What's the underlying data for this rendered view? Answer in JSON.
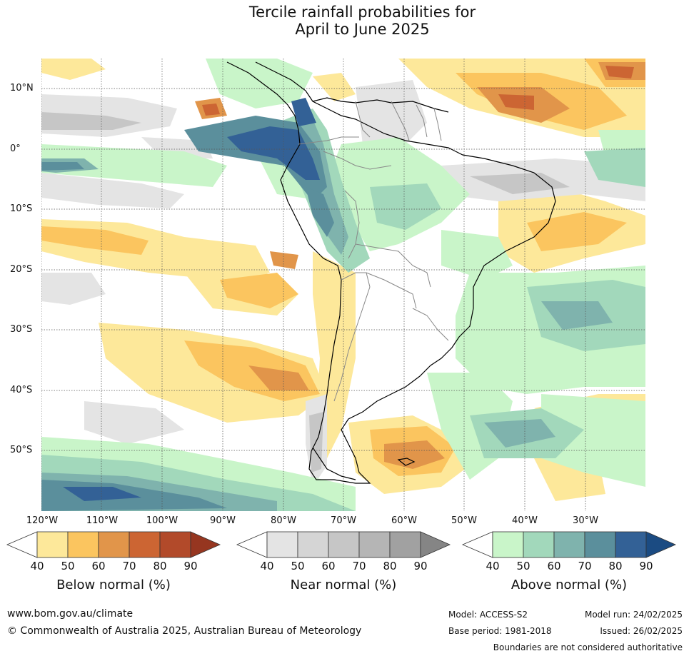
{
  "title": {
    "line1": "Tercile rainfall probabilities for",
    "line2": "April to June 2025"
  },
  "lat_labels": [
    "10°N",
    "0°",
    "10°S",
    "20°S",
    "30°S",
    "40°S",
    "50°S"
  ],
  "lon_labels": [
    "120°W",
    "110°W",
    "100°W",
    "90°W",
    "80°W",
    "70°W",
    "60°W",
    "50°W",
    "40°W",
    "30°W"
  ],
  "colorbars": [
    {
      "label": "Below normal (%)",
      "ticks": [
        "40",
        "50",
        "60",
        "70",
        "80",
        "90"
      ],
      "colors": [
        "#ffffff",
        "#fde89a",
        "#fbc55f",
        "#e1954a",
        "#cc6533",
        "#b24a2a",
        "#963620"
      ]
    },
    {
      "label": "Near normal (%)",
      "ticks": [
        "40",
        "50",
        "60",
        "70",
        "80",
        "90"
      ],
      "colors": [
        "#ffffff",
        "#e4e4e4",
        "#d5d5d5",
        "#c6c6c6",
        "#b5b5b5",
        "#a1a1a1",
        "#858585"
      ]
    },
    {
      "label": "Above normal (%)",
      "ticks": [
        "40",
        "50",
        "60",
        "70",
        "80",
        "90"
      ],
      "colors": [
        "#ffffff",
        "#c9f5c9",
        "#a2d8bb",
        "#7fb3ad",
        "#5b8f9c",
        "#336196",
        "#1b4b82"
      ]
    }
  ],
  "footer": {
    "website": "www.bom.gov.au/climate",
    "copyright": "© Commonwealth of Australia 2025, Australian Bureau of Meteorology",
    "model": "Model: ACCESS-S2",
    "base_period": "Base period: 1981-2018",
    "model_run": "Model run: 24/02/2025",
    "issued": "Issued: 26/02/2025",
    "disclaimer": "Boundaries are not considered authoritative"
  }
}
